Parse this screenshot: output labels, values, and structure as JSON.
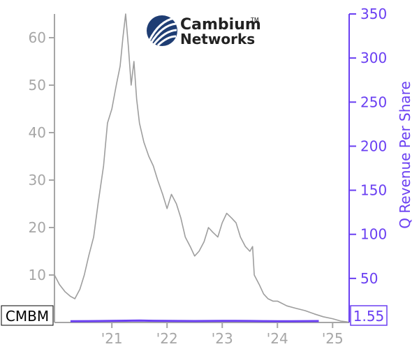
{
  "logo": {
    "line1": "Cambium",
    "line2": "Networks",
    "tm": "TM"
  },
  "ticker": "CMBM",
  "last_value_label": "1.55",
  "colors": {
    "price": "#9e9e9e",
    "revenue": "#6a3ff2",
    "axis_left": "#a6a6a6",
    "logo_mark": "#1f3d73"
  },
  "chart_data": {
    "type": "line",
    "title": "",
    "xlabel": "",
    "ylabel": "",
    "y2label": "Q Revenue Per Share",
    "x_ticks": [
      "'21",
      "'22",
      "'23",
      "'24",
      "'25"
    ],
    "y_left_ticks": [
      10,
      20,
      30,
      40,
      50,
      60
    ],
    "y_right_ticks": [
      50,
      100,
      150,
      200,
      250,
      300,
      350
    ],
    "y_left_range": [
      0,
      65
    ],
    "y_right_range": [
      0,
      350
    ],
    "x_range": [
      2019.96,
      2025.3
    ],
    "grid": false,
    "series": [
      {
        "name": "",
        "axis": "left",
        "x": [
          2019.96,
          2020.05,
          2020.15,
          2020.25,
          2020.33,
          2020.42,
          2020.5,
          2020.58,
          2020.67,
          2020.75,
          2020.85,
          2020.92,
          2021.0,
          2021.08,
          2021.15,
          2021.2,
          2021.25,
          2021.3,
          2021.35,
          2021.4,
          2021.45,
          2021.5,
          2021.58,
          2021.67,
          2021.75,
          2021.83,
          2021.92,
          2022.0,
          2022.08,
          2022.17,
          2022.25,
          2022.33,
          2022.42,
          2022.5,
          2022.58,
          2022.67,
          2022.75,
          2022.83,
          2022.92,
          2023.0,
          2023.08,
          2023.17,
          2023.25,
          2023.33,
          2023.42,
          2023.5,
          2023.55,
          2023.58,
          2023.67,
          2023.75,
          2023.83,
          2023.92,
          2024.0,
          2024.17,
          2024.33,
          2024.5,
          2024.67,
          2024.83,
          2025.0,
          2025.15,
          2025.28
        ],
        "y": [
          10.0,
          8.0,
          6.5,
          5.5,
          5.0,
          7.0,
          10.0,
          14.0,
          18.0,
          25.0,
          33.0,
          42.0,
          45.0,
          50.0,
          54.0,
          60.0,
          65.0,
          58.0,
          50.0,
          55.0,
          47.0,
          42.0,
          38.0,
          35.0,
          33.0,
          30.0,
          27.0,
          24.0,
          27.0,
          25.0,
          22.0,
          18.0,
          16.0,
          14.0,
          15.0,
          17.0,
          20.0,
          19.0,
          18.0,
          21.0,
          23.0,
          22.0,
          21.0,
          18.0,
          16.0,
          15.0,
          16.0,
          10.0,
          8.0,
          6.0,
          5.0,
          4.5,
          4.5,
          3.5,
          3.0,
          2.5,
          1.8,
          1.2,
          0.8,
          0.3,
          0.1
        ]
      },
      {
        "name": "",
        "axis": "right",
        "x": [
          2020.25,
          2020.75,
          2021.0,
          2021.25,
          2021.5,
          2021.75,
          2022.0,
          2022.25,
          2022.5,
          2022.75,
          2023.0,
          2023.25,
          2023.5,
          2023.75,
          2024.0,
          2024.25,
          2024.5,
          2024.75
        ],
        "y": [
          1.4,
          1.6,
          1.8,
          2.0,
          2.1,
          1.9,
          1.8,
          1.7,
          1.6,
          1.7,
          1.8,
          1.8,
          1.7,
          1.5,
          1.4,
          1.4,
          1.5,
          1.55
        ]
      }
    ]
  }
}
